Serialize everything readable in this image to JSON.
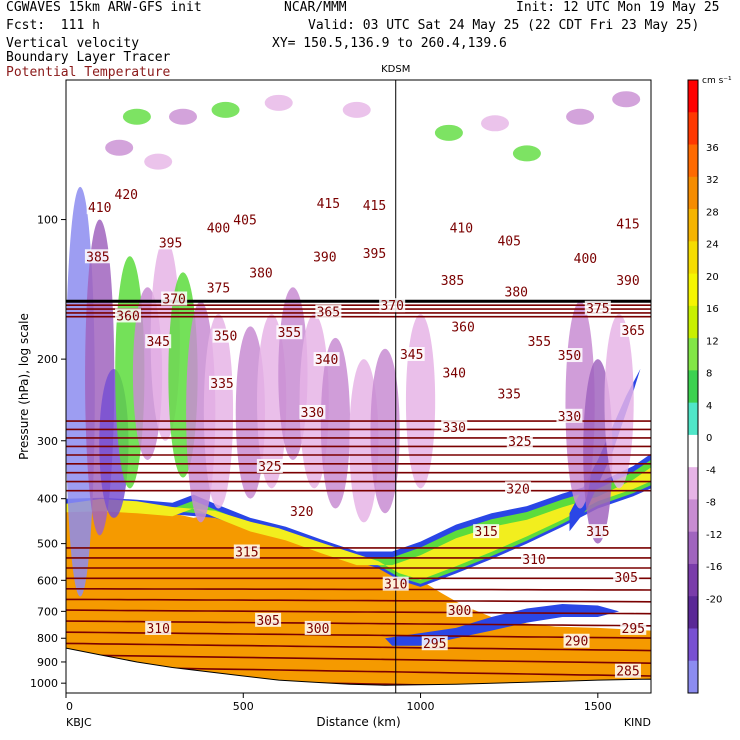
{
  "header": {
    "model": "CGWAVES 15km ARW-GFS init",
    "center": "NCAR/MMM",
    "init": "Init: 12 UTC Mon 19 May 25",
    "fcst": "Fcst:  111 h",
    "valid": "Valid: 03 UTC Sat 24 May 25 (22 CDT Fri 23 May 25)",
    "field1": "Vertical velocity",
    "field2": "Boundary Layer Tracer",
    "field3": "Potential Temperature",
    "xy": "XY= 150.5,136.9 to 260.4,139.6",
    "station_mid": "KDSM",
    "station_left": "KBJC",
    "station_right": "KIND"
  },
  "colors": {
    "theta": "#7a0000",
    "tracer_orange": "#f59a00",
    "tracer_yellow": "#f2ee1e",
    "tracer_green": "#5cdc3c",
    "tracer_blue": "#2a46e6",
    "terrain": "#ffffff"
  },
  "chart_data": {
    "type": "heatmap",
    "title": "",
    "xlabel": "Distance (km)",
    "ylabel": "Pressure (hPa), log scale",
    "xlim": [
      0,
      1650
    ],
    "ylim": [
      1050,
      50
    ],
    "y_scale": "log",
    "x_ticks": [
      0,
      500,
      1000,
      1500
    ],
    "y_ticks": [
      100,
      200,
      300,
      400,
      500,
      600,
      700,
      800,
      900,
      1000
    ],
    "vertical_marker_km": 930,
    "colorbar": {
      "units": "cm s⁻¹",
      "levels": [
        36,
        32,
        28,
        24,
        20,
        16,
        12,
        8,
        4,
        0,
        -4,
        -8,
        -12,
        -16,
        -20
      ],
      "colors": [
        "#ff0000",
        "#ff3800",
        "#ff6a00",
        "#f58c00",
        "#f5b400",
        "#f5dc00",
        "#f5f500",
        "#c8f000",
        "#82e646",
        "#3cd250",
        "#50e6c8",
        "#ffffff",
        "#e6b4e6",
        "#c88cd2",
        "#a064be",
        "#7a3caa",
        "#5a2896",
        "#7850d2",
        "#8c8cf0"
      ]
    },
    "theta_labels": [
      {
        "v": 420,
        "x": 170,
        "p": 88
      },
      {
        "v": 410,
        "x": 95,
        "p": 94
      },
      {
        "v": 415,
        "x": 740,
        "p": 92
      },
      {
        "v": 415,
        "x": 870,
        "p": 93
      },
      {
        "v": 415,
        "x": 1585,
        "p": 102
      },
      {
        "v": 405,
        "x": 505,
        "p": 100
      },
      {
        "v": 405,
        "x": 1250,
        "p": 111
      },
      {
        "v": 400,
        "x": 430,
        "p": 104
      },
      {
        "v": 400,
        "x": 1465,
        "p": 121
      },
      {
        "v": 410,
        "x": 1115,
        "p": 104
      },
      {
        "v": 395,
        "x": 295,
        "p": 112
      },
      {
        "v": 395,
        "x": 870,
        "p": 118
      },
      {
        "v": 390,
        "x": 730,
        "p": 120
      },
      {
        "v": 390,
        "x": 1585,
        "p": 135
      },
      {
        "v": 385,
        "x": 90,
        "p": 120
      },
      {
        "v": 385,
        "x": 1090,
        "p": 135
      },
      {
        "v": 380,
        "x": 550,
        "p": 130
      },
      {
        "v": 380,
        "x": 1270,
        "p": 143
      },
      {
        "v": 375,
        "x": 430,
        "p": 140
      },
      {
        "v": 375,
        "x": 1500,
        "p": 155
      },
      {
        "v": 370,
        "x": 305,
        "p": 148
      },
      {
        "v": 370,
        "x": 920,
        "p": 153
      },
      {
        "v": 365,
        "x": 740,
        "p": 158
      },
      {
        "v": 365,
        "x": 1600,
        "p": 173
      },
      {
        "v": 360,
        "x": 175,
        "p": 161
      },
      {
        "v": 360,
        "x": 1120,
        "p": 170
      },
      {
        "v": 355,
        "x": 630,
        "p": 175
      },
      {
        "v": 355,
        "x": 1335,
        "p": 183
      },
      {
        "v": 350,
        "x": 450,
        "p": 178
      },
      {
        "v": 350,
        "x": 1420,
        "p": 196
      },
      {
        "v": 345,
        "x": 260,
        "p": 183
      },
      {
        "v": 345,
        "x": 975,
        "p": 195
      },
      {
        "v": 340,
        "x": 735,
        "p": 200
      },
      {
        "v": 340,
        "x": 1095,
        "p": 214
      },
      {
        "v": 335,
        "x": 440,
        "p": 225
      },
      {
        "v": 335,
        "x": 1250,
        "p": 237
      },
      {
        "v": 330,
        "x": 695,
        "p": 260
      },
      {
        "v": 330,
        "x": 1095,
        "p": 280
      },
      {
        "v": 330,
        "x": 1420,
        "p": 265
      },
      {
        "v": 325,
        "x": 575,
        "p": 340
      },
      {
        "v": 325,
        "x": 1280,
        "p": 300
      },
      {
        "v": 320,
        "x": 665,
        "p": 425
      },
      {
        "v": 320,
        "x": 1275,
        "p": 380
      },
      {
        "v": 315,
        "x": 510,
        "p": 520
      },
      {
        "v": 315,
        "x": 1185,
        "p": 470
      },
      {
        "v": 315,
        "x": 1500,
        "p": 470
      },
      {
        "v": 310,
        "x": 260,
        "p": 760
      },
      {
        "v": 310,
        "x": 930,
        "p": 610
      },
      {
        "v": 310,
        "x": 1320,
        "p": 540
      },
      {
        "v": 305,
        "x": 570,
        "p": 730
      },
      {
        "v": 305,
        "x": 1580,
        "p": 590
      },
      {
        "v": 300,
        "x": 710,
        "p": 760
      },
      {
        "v": 300,
        "x": 1110,
        "p": 695
      },
      {
        "v": 295,
        "x": 1040,
        "p": 820
      },
      {
        "v": 295,
        "x": 1600,
        "p": 760
      },
      {
        "v": 290,
        "x": 1440,
        "p": 810
      },
      {
        "v": 285,
        "x": 1585,
        "p": 940
      }
    ]
  }
}
